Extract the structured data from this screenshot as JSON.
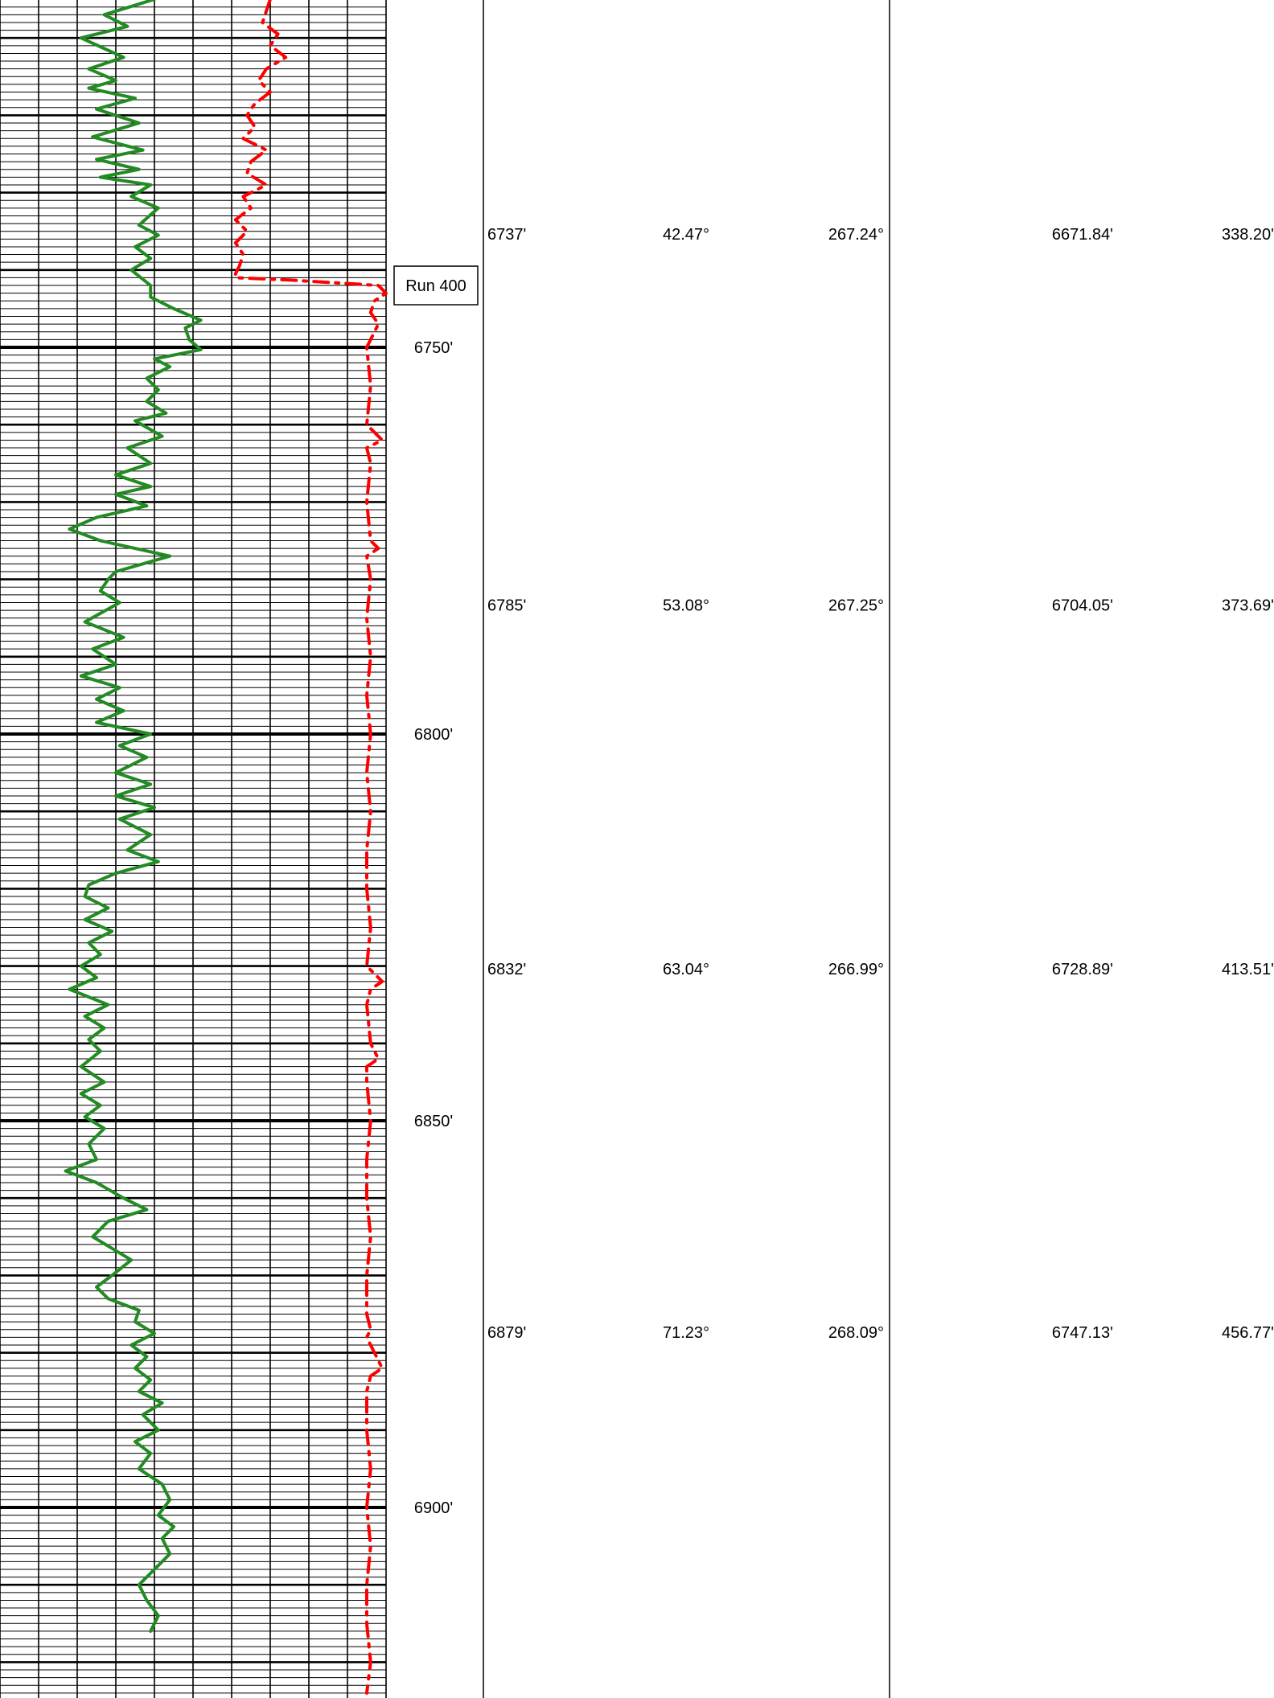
{
  "chart_data": {
    "type": "line",
    "depth_unit": "ft",
    "depth_range": [
      6705,
      6925
    ],
    "grid": true,
    "depth_labels": [
      "6750'",
      "6800'",
      "6850'",
      "6900'"
    ],
    "depth_label_values": [
      6750,
      6800,
      6850,
      6900
    ],
    "run_marker": {
      "label": "Run 400",
      "depth": 6742.0
    },
    "series": [
      {
        "color": "#228B22",
        "style": "solid",
        "depth": [
          6705,
          6707,
          6708.5,
          6710,
          6712.5,
          6714,
          6715.5,
          6716.5,
          6717.8,
          6719.2,
          6721,
          6722.8,
          6724.5,
          6725.7,
          6727,
          6728,
          6729,
          6730.5,
          6732,
          6734.2,
          6735.5,
          6737,
          6738.5,
          6740,
          6742,
          6743.5,
          6745,
          6746.5,
          6747.5,
          6749,
          6750.3,
          6751.5,
          6752.5,
          6754,
          6755.5,
          6757,
          6758.5,
          6759.5,
          6761.5,
          6763,
          6765,
          6766.5,
          6768,
          6769,
          6770.5,
          6772,
          6773.5,
          6775,
          6777,
          6779,
          6780,
          6781.5,
          6783,
          6785.5,
          6787.5,
          6789,
          6791,
          6792.5,
          6794,
          6795.5,
          6797,
          6798.5,
          6800,
          6801.5,
          6803,
          6805,
          6806.5,
          6808,
          6809.5,
          6811,
          6813,
          6815,
          6816.5,
          6818,
          6819.5,
          6821,
          6822.5,
          6824,
          6825.5,
          6827,
          6828.5,
          6830,
          6831.5,
          6833,
          6835,
          6836.5,
          6838,
          6839.5,
          6841,
          6843,
          6845,
          6846.5,
          6848,
          6849.5,
          6851,
          6853,
          6855,
          6856.5,
          6858,
          6860,
          6861.5,
          6863,
          6865,
          6866.5,
          6868,
          6870,
          6871.5,
          6873,
          6874.5,
          6876,
          6877.5,
          6879,
          6880.5,
          6882,
          6883.5,
          6885,
          6886.5,
          6888,
          6890,
          6891.5,
          6893,
          6895,
          6897,
          6899,
          6901,
          6902.5,
          6904,
          6906,
          6908,
          6910,
          6912,
          6914,
          6916,
          6918,
          6920,
          6922,
          6924
        ],
        "value": [
          4.0,
          2.7,
          3.3,
          2.1,
          3.2,
          2.3,
          3.0,
          2.3,
          3.5,
          2.5,
          3.6,
          2.4,
          3.7,
          2.5,
          3.6,
          2.6,
          3.9,
          3.4,
          4.1,
          3.6,
          4.1,
          3.5,
          3.9,
          3.4,
          3.9,
          3.9,
          4.5,
          5.2,
          4.8,
          4.9,
          5.2,
          4.0,
          4.4,
          3.8,
          4.1,
          3.8,
          4.3,
          3.5,
          4.2,
          3.3,
          3.9,
          3.0,
          3.9,
          3.0,
          3.8,
          2.5,
          1.8,
          2.6,
          4.4,
          3.0,
          2.8,
          2.6,
          3.1,
          2.2,
          3.2,
          2.4,
          3.0,
          2.1,
          3.1,
          2.5,
          3.2,
          2.5,
          3.9,
          3.1,
          3.8,
          3.0,
          3.9,
          3.0,
          4.0,
          3.1,
          3.9,
          3.3,
          4.1,
          3.0,
          2.3,
          2.2,
          2.8,
          2.2,
          2.9,
          2.3,
          2.6,
          2.1,
          2.5,
          1.8,
          2.8,
          2.2,
          2.7,
          2.3,
          2.6,
          2.1,
          2.7,
          2.1,
          2.6,
          2.2,
          2.7,
          2.3,
          2.5,
          1.7,
          2.5,
          3.2,
          3.8,
          2.8,
          2.4,
          2.9,
          3.4,
          2.9,
          2.5,
          2.8,
          3.6,
          3.5,
          4.0,
          3.4,
          3.8,
          3.5,
          3.9,
          3.6,
          4.2,
          3.7,
          4.1,
          3.5,
          3.9,
          3.6,
          4.2,
          4.4,
          4.1,
          4.5,
          4.2,
          4.4,
          4.0,
          3.6,
          3.8,
          4.1,
          3.9
        ]
      },
      {
        "color": "#FF0000",
        "style": "dashed",
        "depth": [
          6705,
          6706.5,
          6708,
          6709.5,
          6711,
          6712.5,
          6714,
          6715.5,
          6717,
          6718.5,
          6720,
          6721.5,
          6723,
          6724.5,
          6726,
          6727.5,
          6729,
          6730.5,
          6732,
          6733.5,
          6735,
          6736.5,
          6738,
          6739.5,
          6740.5,
          6741,
          6741.3,
          6742,
          6743,
          6744,
          6745.5,
          6747,
          6748,
          6750,
          6755,
          6760,
          6762,
          6763,
          6765,
          6770,
          6775,
          6776,
          6777,
          6780,
          6785,
          6790,
          6795,
          6800,
          6805,
          6810,
          6815,
          6820,
          6825,
          6830,
          6831,
          6832,
          6833,
          6835,
          6840,
          6842,
          6843,
          6845,
          6850,
          6855,
          6860,
          6865,
          6870,
          6875,
          6877,
          6878,
          6880,
          6882,
          6883,
          6885,
          6890,
          6895,
          6900,
          6905,
          6910,
          6915,
          6920,
          6924
        ],
        "value": [
          7.0,
          6.9,
          6.8,
          7.2,
          7.0,
          7.4,
          6.9,
          6.7,
          7.0,
          6.6,
          6.4,
          6.6,
          6.3,
          6.9,
          6.5,
          6.4,
          6.9,
          6.3,
          6.5,
          6.1,
          6.4,
          6.1,
          6.3,
          6.2,
          6.1,
          6.1,
          7.5,
          9.8,
          10.0,
          9.7,
          9.6,
          9.8,
          9.7,
          9.5,
          9.6,
          9.5,
          9.9,
          9.5,
          9.6,
          9.5,
          9.6,
          9.8,
          9.5,
          9.6,
          9.5,
          9.6,
          9.5,
          9.6,
          9.5,
          9.6,
          9.5,
          9.5,
          9.6,
          9.5,
          9.7,
          9.9,
          9.6,
          9.5,
          9.6,
          9.8,
          9.5,
          9.5,
          9.6,
          9.5,
          9.5,
          9.6,
          9.5,
          9.5,
          9.6,
          9.5,
          9.7,
          9.9,
          9.6,
          9.5,
          9.5,
          9.6,
          9.5,
          9.6,
          9.5,
          9.5,
          9.6,
          9.5
        ]
      }
    ]
  },
  "survey": {
    "rows": [
      {
        "md": "6737'",
        "inc": "42.47°",
        "azi": "267.24°",
        "tvd": "6671.84'",
        "vs": "338.20'",
        "depth": 6737
      },
      {
        "md": "6785'",
        "inc": "53.08°",
        "azi": "267.25°",
        "tvd": "6704.05'",
        "vs": "373.69'",
        "depth": 6785
      },
      {
        "md": "6832'",
        "inc": "63.04°",
        "azi": "266.99°",
        "tvd": "6728.89'",
        "vs": "413.51'",
        "depth": 6832
      },
      {
        "md": "6879'",
        "inc": "71.23°",
        "azi": "268.09°",
        "tvd": "6747.13'",
        "vs": "456.77'",
        "depth": 6879
      }
    ]
  }
}
